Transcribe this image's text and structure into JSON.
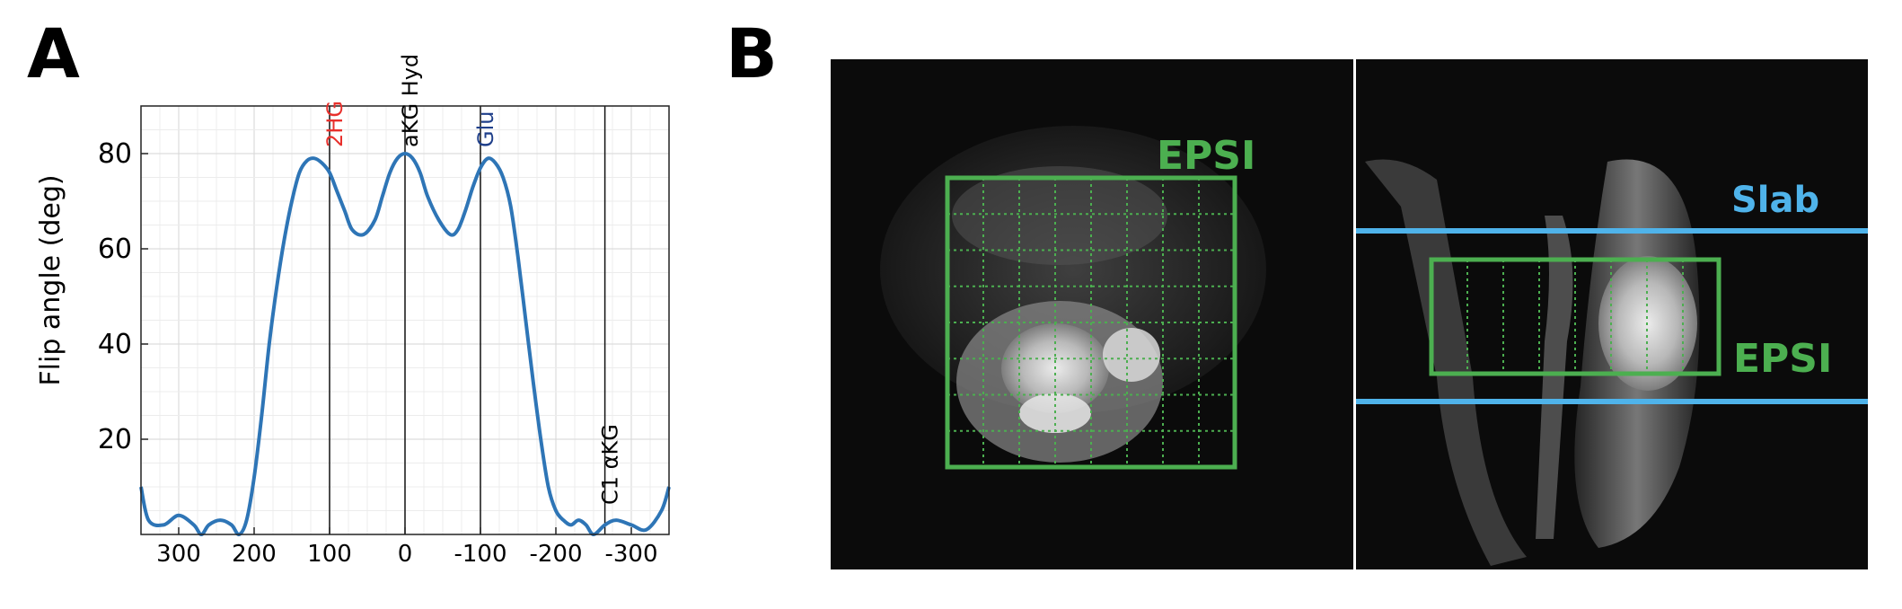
{
  "panels": {
    "a_letter": "A",
    "b_letter": "B"
  },
  "chart_data": {
    "type": "line",
    "ylabel": "Flip angle (deg)",
    "xlabel": "",
    "xlim": [
      350,
      -350
    ],
    "ylim": [
      0,
      90
    ],
    "x_ticks": [
      300,
      200,
      100,
      0,
      -100,
      -200,
      -300
    ],
    "y_ticks": [
      20,
      40,
      60,
      80
    ],
    "grid": true,
    "series": [
      {
        "color": "#2e75b6",
        "x": [
          350,
          340,
          320,
          300,
          280,
          270,
          260,
          245,
          230,
          220,
          210,
          200,
          190,
          180,
          170,
          160,
          150,
          140,
          130,
          120,
          110,
          100,
          90,
          80,
          70,
          55,
          40,
          30,
          20,
          10,
          0,
          -10,
          -20,
          -30,
          -45,
          -60,
          -70,
          -80,
          -90,
          -100,
          -110,
          -120,
          -130,
          -140,
          -150,
          -160,
          -170,
          -180,
          -190,
          -200,
          -210,
          -220,
          -230,
          -240,
          -250,
          -265,
          -280,
          -300,
          -320,
          -340,
          -350
        ],
        "y": [
          10,
          3,
          2,
          4,
          2,
          0,
          2,
          3,
          2,
          0,
          3,
          12,
          25,
          40,
          52,
          62,
          70,
          76,
          78.5,
          79,
          78,
          76,
          72,
          68,
          64,
          63,
          66,
          71,
          76,
          79,
          80,
          79,
          76,
          71,
          66,
          63,
          64,
          68,
          73,
          77,
          79,
          78,
          75,
          69,
          58,
          45,
          32,
          20,
          10,
          5,
          3,
          2,
          3,
          2,
          0,
          2,
          3,
          2,
          1,
          5,
          10
        ]
      }
    ],
    "annotations": [
      {
        "label": "2HG",
        "x": 100,
        "color": "#e8302c"
      },
      {
        "label": "aKG Hyd",
        "x": 0,
        "color": "#000000"
      },
      {
        "label": "Glu",
        "x": -100,
        "color": "#1f3f8a"
      },
      {
        "label": "C1 αKG",
        "x": -265,
        "color": "#000000"
      }
    ]
  },
  "mri": {
    "left_label": "EPSI",
    "right_labels": {
      "slab": "Slab",
      "epsi": "EPSI"
    },
    "colors": {
      "grid_green": "#4caf50",
      "slab_blue": "#4fb3ea"
    }
  }
}
